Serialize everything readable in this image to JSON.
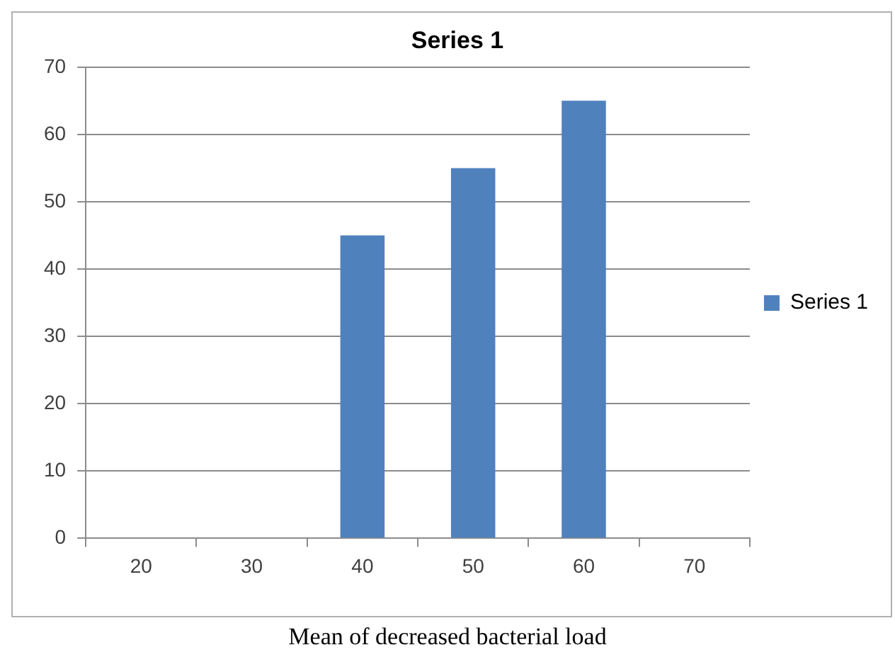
{
  "chart_data": {
    "type": "bar",
    "title": "Series 1",
    "categories": [
      "20",
      "30",
      "40",
      "50",
      "60",
      "70"
    ],
    "series": [
      {
        "name": "Series 1",
        "color": "#4f81bd",
        "values": [
          null,
          null,
          45,
          55,
          65,
          null
        ]
      }
    ],
    "ylim": [
      0,
      70
    ],
    "yticks": [
      0,
      10,
      20,
      30,
      40,
      50,
      60,
      70
    ],
    "grid": "y",
    "legend": "right",
    "annotations": [
      "Mean of decreased bacterial load"
    ]
  }
}
